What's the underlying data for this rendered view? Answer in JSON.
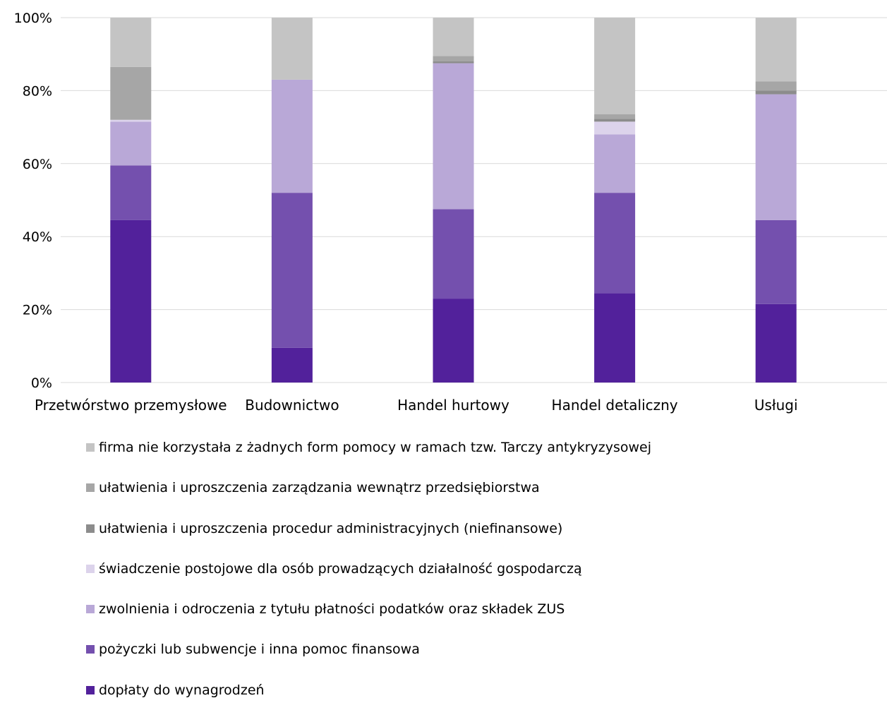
{
  "chart_data": {
    "type": "bar",
    "stacked": true,
    "percent": true,
    "categories": [
      "Przetwórstwo przemysłowe",
      "Budownictwo",
      "Handel hurtowy",
      "Handel detaliczny",
      "Usługi"
    ],
    "ylim": [
      0,
      100
    ],
    "yticks": [
      "0%",
      "20%",
      "40%",
      "60%",
      "80%",
      "100%"
    ],
    "grid": true,
    "legend_position": "bottom",
    "series": [
      {
        "name": "dopłaty do wynagrodzeń",
        "color": "#52219b",
        "values": [
          44.5,
          9.5,
          23,
          24.5,
          21.5
        ]
      },
      {
        "name": "pożyczki lub subwencje i inna pomoc finansowa",
        "color": "#7450ae",
        "values": [
          15,
          42.5,
          24.5,
          27.5,
          23
        ]
      },
      {
        "name": "zwolnienia i odroczenia z tytułu płatności podatków oraz składek ZUS",
        "color": "#b9a8d7",
        "values": [
          12,
          31,
          40,
          16,
          34.5
        ]
      },
      {
        "name": "świadczenie postojowe dla osób prowadzących działalność gospodarczą",
        "color": "#dcd3eb",
        "values": [
          0.5,
          0,
          0,
          3.5,
          0
        ]
      },
      {
        "name": "ułatwienia i uproszczenia procedur administracyjnych (niefinansowe)",
        "color": "#8c8c8c",
        "values": [
          0,
          0,
          0.5,
          0.8,
          1
        ]
      },
      {
        "name": "ułatwienia i uproszczenia zarządzania wewnątrz przedsiębiorstwa",
        "color": "#a6a6a6",
        "values": [
          14.5,
          0,
          1.5,
          1.2,
          2.5
        ]
      },
      {
        "name": "firma nie korzystała z żadnych form pomocy w ramach tzw. Tarczy antykryzysowej",
        "color": "#c4c4c4",
        "values": [
          13.5,
          17,
          10.5,
          26.5,
          17.5
        ]
      }
    ]
  }
}
